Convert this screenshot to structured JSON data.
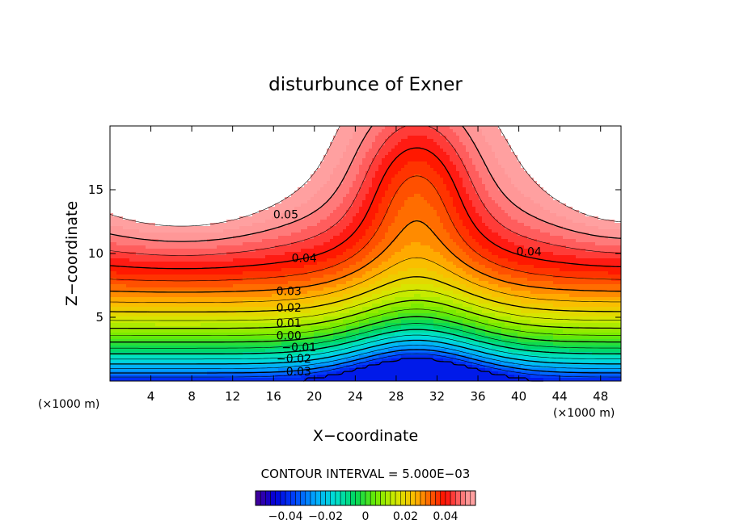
{
  "chart_data": {
    "type": "heatmap",
    "title": "disturbunce of Exner",
    "xlabel": "X−coordinate",
    "ylabel": "Z−coordinate",
    "x_unit": "(×1000 m)",
    "x_unit_bottom": "(×1000 m)",
    "xlim": [
      0,
      50
    ],
    "ylim": [
      0,
      20
    ],
    "x_ticks": [
      4,
      8,
      12,
      16,
      20,
      24,
      28,
      32,
      36,
      40,
      44,
      48
    ],
    "y_ticks": [
      5,
      10,
      15
    ],
    "contour_interval_text": "CONTOUR INTERVAL = 5.000E−03",
    "contour_interval": 0.005,
    "contour_labels": [
      {
        "text": "0.05",
        "x": 17.2,
        "z": 13.0
      },
      {
        "text": "0.04",
        "x": 19.0,
        "z": 9.6
      },
      {
        "text": "0.04",
        "x": 41.0,
        "z": 10.1
      },
      {
        "text": "0.03",
        "x": 17.5,
        "z": 7.0
      },
      {
        "text": "0.02",
        "x": 17.5,
        "z": 5.7
      },
      {
        "text": "0.01",
        "x": 17.5,
        "z": 4.5
      },
      {
        "text": "0.00",
        "x": 17.5,
        "z": 3.5
      },
      {
        "text": "−0.01",
        "x": 18.5,
        "z": 2.6
      },
      {
        "text": "−0.02",
        "x": 18.0,
        "z": 1.7
      },
      {
        "text": "−0.03",
        "x": 18.0,
        "z": 0.7
      }
    ],
    "colorbar": {
      "min": -0.055,
      "max": 0.055,
      "tick_values": [
        -0.04,
        -0.02,
        0,
        0.02,
        0.04
      ],
      "tick_labels": [
        "−0.04",
        "−0.02",
        "0",
        "0.02",
        "0.04"
      ]
    },
    "field_model": {
      "description_units": "Exner disturbance in data units",
      "ridge_center_x": 30,
      "base_value": -0.04,
      "vertical_scale_k": 6.0,
      "vertical_amplitude": 0.1,
      "hump_amplitude": 1.8,
      "hump_width": 5.5,
      "left_max": {
        "x": 7,
        "z": 15.8,
        "amplitude": 0.012,
        "sx": 7.5,
        "sz": 4.2
      },
      "right_max": {
        "x": 51,
        "z": 15.3,
        "amplitude": 0.01,
        "sx": 6.0,
        "sz": 3.8
      },
      "ridge_min": {
        "z": 15.5,
        "amplitude": 0.016,
        "sx": 4.0,
        "sz": 5.0
      }
    }
  }
}
